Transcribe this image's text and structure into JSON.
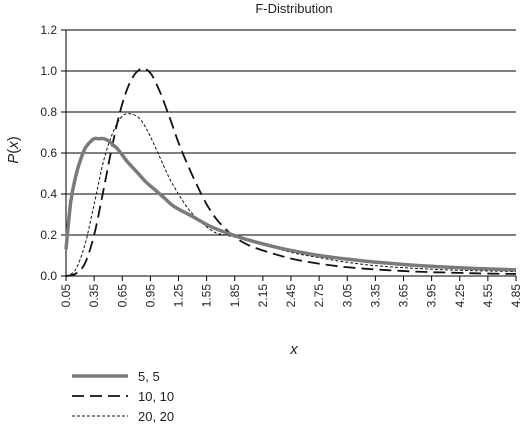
{
  "chart_data": {
    "type": "line",
    "title": "F-Distribution",
    "xlabel": "x",
    "ylabel": "P(x)",
    "ylim": [
      0,
      1.2
    ],
    "yticks": [
      "0.0",
      "0.2",
      "0.4",
      "0.6",
      "0.8",
      "1.0",
      "1.2"
    ],
    "xticks": [
      "0.05",
      "0.35",
      "0.65",
      "0.95",
      "1.25",
      "1.55",
      "1.85",
      "2.15",
      "2.45",
      "2.75",
      "3.05",
      "3.35",
      "3.65",
      "3.95",
      "4.25",
      "4.55",
      "4.85"
    ],
    "xlim": [
      0.05,
      4.85
    ],
    "grid": "horizontal",
    "legend_position": "bottom-left",
    "series": [
      {
        "name": "5, 5",
        "style": "solid",
        "color": "#7a7a7a",
        "x": [
          0.05,
          0.1,
          0.15,
          0.2,
          0.25,
          0.3,
          0.35,
          0.4,
          0.45,
          0.5,
          0.55,
          0.6,
          0.65,
          0.7,
          0.8,
          0.9,
          1.0,
          1.1,
          1.2,
          1.4,
          1.6,
          1.8,
          2.0,
          2.25,
          2.5,
          2.75,
          3.0,
          3.25,
          3.5,
          3.75,
          4.0,
          4.25,
          4.5,
          4.85
        ],
        "y": [
          0.13,
          0.36,
          0.48,
          0.56,
          0.62,
          0.65,
          0.67,
          0.67,
          0.67,
          0.66,
          0.64,
          0.62,
          0.59,
          0.56,
          0.51,
          0.46,
          0.42,
          0.38,
          0.34,
          0.29,
          0.24,
          0.205,
          0.175,
          0.145,
          0.12,
          0.1,
          0.085,
          0.072,
          0.062,
          0.053,
          0.046,
          0.04,
          0.035,
          0.03
        ]
      },
      {
        "name": "10, 10",
        "style": "dashed",
        "color": "#111111",
        "x": [
          0.05,
          0.15,
          0.25,
          0.35,
          0.45,
          0.55,
          0.65,
          0.75,
          0.85,
          0.95,
          1.05,
          1.15,
          1.25,
          1.35,
          1.45,
          1.55,
          1.65,
          1.75,
          1.85,
          2.0,
          2.25,
          2.5,
          2.75,
          3.0,
          3.25,
          3.5,
          3.75,
          4.0,
          4.25,
          4.5,
          4.85
        ],
        "y": [
          0.0,
          0.01,
          0.06,
          0.2,
          0.42,
          0.65,
          0.84,
          0.96,
          1.01,
          0.99,
          0.9,
          0.78,
          0.65,
          0.54,
          0.44,
          0.35,
          0.28,
          0.23,
          0.19,
          0.15,
          0.11,
          0.08,
          0.06,
          0.045,
          0.035,
          0.028,
          0.022,
          0.018,
          0.015,
          0.012,
          0.01
        ]
      },
      {
        "name": "20, 20",
        "style": "dotted",
        "color": "#111111",
        "x": [
          0.05,
          0.15,
          0.25,
          0.35,
          0.45,
          0.55,
          0.65,
          0.75,
          0.85,
          0.95,
          1.05,
          1.15,
          1.25,
          1.35,
          1.45,
          1.55,
          1.65,
          1.75,
          1.85,
          2.0,
          2.25,
          2.5,
          2.75,
          3.0,
          3.25,
          3.5,
          3.75,
          4.0,
          4.25,
          4.5,
          4.85
        ],
        "y": [
          0.0,
          0.03,
          0.15,
          0.35,
          0.56,
          0.7,
          0.78,
          0.79,
          0.76,
          0.68,
          0.58,
          0.48,
          0.4,
          0.33,
          0.28,
          0.24,
          0.21,
          0.2,
          0.19,
          0.17,
          0.14,
          0.11,
          0.09,
          0.07,
          0.055,
          0.045,
          0.038,
          0.032,
          0.028,
          0.025,
          0.022
        ]
      }
    ]
  }
}
